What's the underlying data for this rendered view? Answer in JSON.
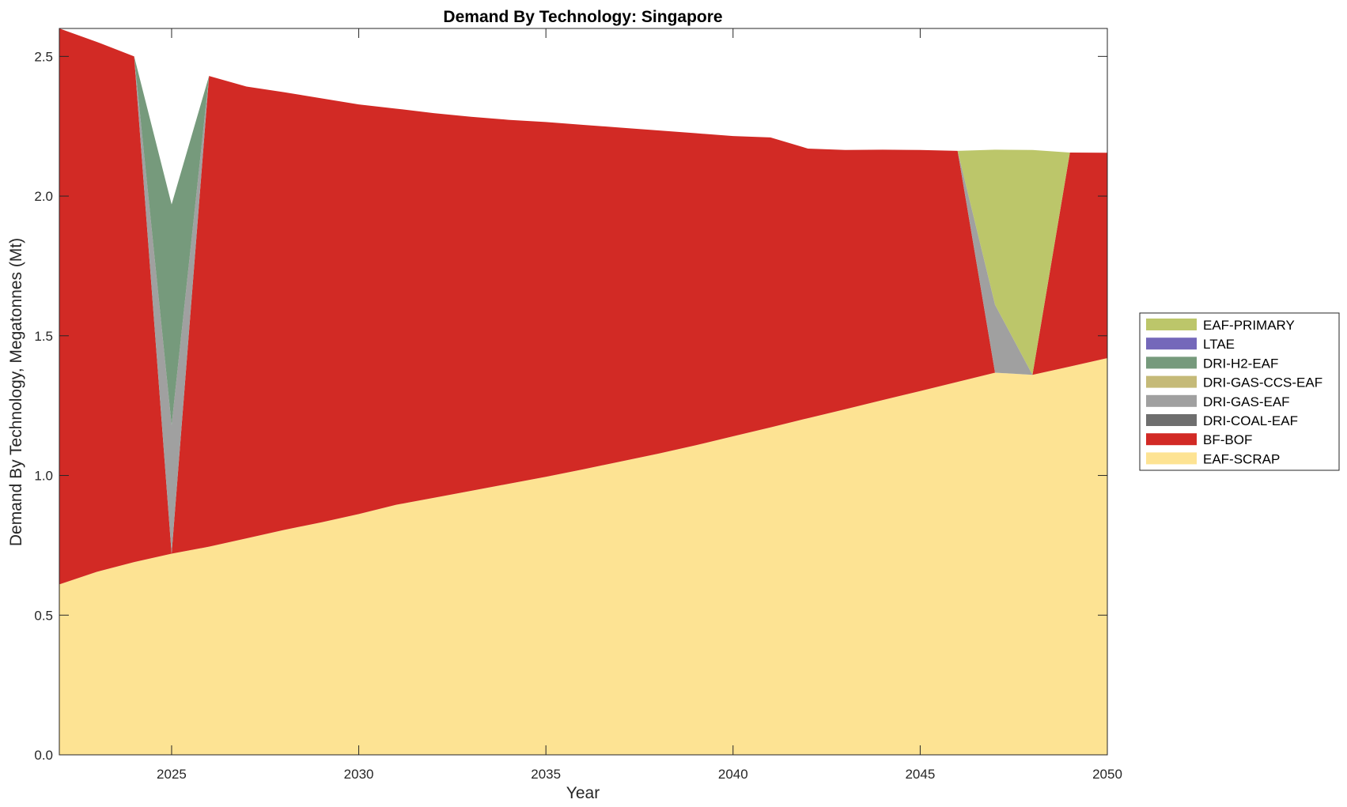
{
  "chart_data": {
    "type": "area",
    "stacked": true,
    "title": "Demand By Technology: Singapore",
    "xlabel": "Year",
    "ylabel": "Demand By Technology, Megatonnes (Mt)",
    "xlim": [
      2022,
      2050
    ],
    "ylim": [
      0,
      2.6
    ],
    "xticks": [
      "2025",
      "2030",
      "2035",
      "2040",
      "2045",
      "2050"
    ],
    "yticks": [
      "0.0",
      "0.5",
      "1.0",
      "1.5",
      "2.0",
      "2.5"
    ],
    "grid": false,
    "legend_position": "right",
    "x": [
      2022,
      2023,
      2024,
      2025,
      2026,
      2027,
      2028,
      2029,
      2030,
      2031,
      2032,
      2033,
      2034,
      2035,
      2036,
      2037,
      2038,
      2039,
      2040,
      2041,
      2042,
      2043,
      2044,
      2045,
      2046,
      2047,
      2048,
      2049,
      2050
    ],
    "series": [
      {
        "name": "EAF-SCRAP",
        "color": "#FDE393",
        "values": [
          0.61,
          0.655,
          0.69,
          0.72,
          0.745,
          0.775,
          0.805,
          0.832,
          0.862,
          0.895,
          0.92,
          0.945,
          0.97,
          0.995,
          1.022,
          1.05,
          1.078,
          1.108,
          1.14,
          1.172,
          1.205,
          1.237,
          1.27,
          1.302,
          1.335,
          1.368,
          1.36,
          1.39,
          1.42
        ]
      },
      {
        "name": "BF-BOF",
        "color": "#D22A25",
        "values": [
          1.99,
          1.897,
          1.81,
          0.0,
          1.685,
          1.617,
          1.567,
          1.518,
          1.466,
          1.418,
          1.377,
          1.339,
          1.303,
          1.27,
          1.233,
          1.195,
          1.157,
          1.117,
          1.075,
          1.038,
          0.965,
          0.928,
          0.896,
          0.863,
          0.827,
          0.0,
          0.0,
          0.766,
          0.735
        ]
      },
      {
        "name": "DRI-COAL-EAF",
        "color": "#6E6E6E",
        "values": [
          0,
          0,
          0,
          0,
          0,
          0,
          0,
          0,
          0,
          0,
          0,
          0,
          0,
          0,
          0,
          0,
          0,
          0,
          0,
          0,
          0,
          0,
          0,
          0,
          0,
          0,
          0,
          0,
          0
        ]
      },
      {
        "name": "DRI-GAS-EAF",
        "color": "#A0A0A0",
        "values": [
          0,
          0,
          0,
          0.46,
          0,
          0,
          0,
          0,
          0,
          0,
          0,
          0,
          0,
          0,
          0,
          0,
          0,
          0,
          0,
          0,
          0,
          0,
          0,
          0,
          0,
          0.243,
          0,
          0,
          0
        ]
      },
      {
        "name": "DRI-GAS-CCS-EAF",
        "color": "#C5BA78",
        "values": [
          0,
          0,
          0,
          0,
          0,
          0,
          0,
          0,
          0,
          0,
          0,
          0,
          0,
          0,
          0,
          0,
          0,
          0,
          0,
          0,
          0,
          0,
          0,
          0,
          0,
          0,
          0,
          0,
          0
        ]
      },
      {
        "name": "DRI-H2-EAF",
        "color": "#769A7C",
        "values": [
          0,
          0,
          0,
          0.79,
          0,
          0,
          0,
          0,
          0,
          0,
          0,
          0,
          0,
          0,
          0,
          0,
          0,
          0,
          0,
          0,
          0,
          0,
          0,
          0,
          0,
          0,
          0,
          0,
          0
        ]
      },
      {
        "name": "LTAE",
        "color": "#7468BA",
        "values": [
          0,
          0,
          0,
          0,
          0,
          0,
          0,
          0,
          0,
          0,
          0,
          0,
          0,
          0,
          0,
          0,
          0,
          0,
          0,
          0,
          0,
          0,
          0,
          0,
          0,
          0,
          0,
          0,
          0
        ]
      },
      {
        "name": "EAF-PRIMARY",
        "color": "#BCC66A",
        "values": [
          0,
          0,
          0,
          0,
          0,
          0,
          0,
          0,
          0,
          0,
          0,
          0,
          0,
          0,
          0,
          0,
          0,
          0,
          0,
          0,
          0,
          0,
          0,
          0,
          0,
          0.555,
          0.805,
          0,
          0
        ]
      }
    ]
  }
}
